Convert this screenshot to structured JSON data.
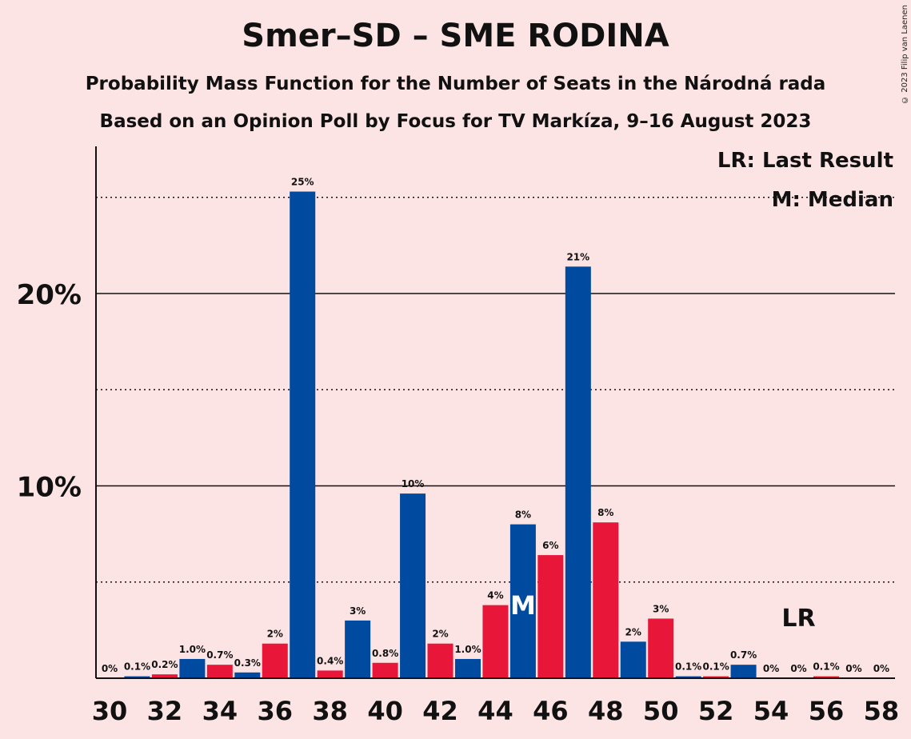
{
  "chart_data": {
    "type": "bar",
    "title": "Smer–SD – SME RODINA",
    "subtitle": "Probability Mass Function for the Number of Seats in the Národná rada",
    "subtitle2": "Based on an Opinion Poll by Focus for TV Markíza, 9–16 August 2023",
    "copyright": "© 2023 Filip van Laenen",
    "legend": [
      "LR: Last Result",
      "M: Median"
    ],
    "legend_position": "top-right",
    "x": [
      30,
      31,
      32,
      33,
      34,
      35,
      36,
      37,
      38,
      39,
      40,
      41,
      42,
      43,
      44,
      45,
      46,
      47,
      48,
      49,
      50,
      51,
      52,
      53,
      54,
      55,
      56,
      57,
      58
    ],
    "values": [
      0,
      0.1,
      0.2,
      1.0,
      0.7,
      0.3,
      1.8,
      25.3,
      0.4,
      3.0,
      0.8,
      9.6,
      1.8,
      1.0,
      3.8,
      8.0,
      6.4,
      21.4,
      8.1,
      1.9,
      3.1,
      0.1,
      0.1,
      0.7,
      0,
      0,
      0.1,
      0,
      0
    ],
    "labels": [
      "0%",
      "0.1%",
      "0.2%",
      "1.0%",
      "0.7%",
      "0.3%",
      "2%",
      "25%",
      "0.4%",
      "3%",
      "0.8%",
      "10%",
      "2%",
      "1.0%",
      "4%",
      "8%",
      "6%",
      "21%",
      "8%",
      "2%",
      "3%",
      "0.1%",
      "0.1%",
      "0.7%",
      "0%",
      "0%",
      "0.1%",
      "0%",
      "0%"
    ],
    "x_tick_labels": [
      "30",
      "32",
      "34",
      "36",
      "38",
      "40",
      "42",
      "44",
      "46",
      "48",
      "50",
      "52",
      "54",
      "56",
      "58"
    ],
    "y_tick_labels": [
      "10%",
      "20%"
    ],
    "y_major_ticks": [
      10,
      20
    ],
    "y_minor_ticks": [
      5,
      15,
      25
    ],
    "ylim": [
      0,
      27.5
    ],
    "median_seat": 45,
    "median_marker": "M",
    "last_result_seat": 55,
    "last_result_marker": "LR",
    "colors": {
      "blue": "#004a9f",
      "red": "#e8173a",
      "background": "#fde4e4"
    },
    "series_colors": "alternating blue on odd seats, red on even seats"
  }
}
